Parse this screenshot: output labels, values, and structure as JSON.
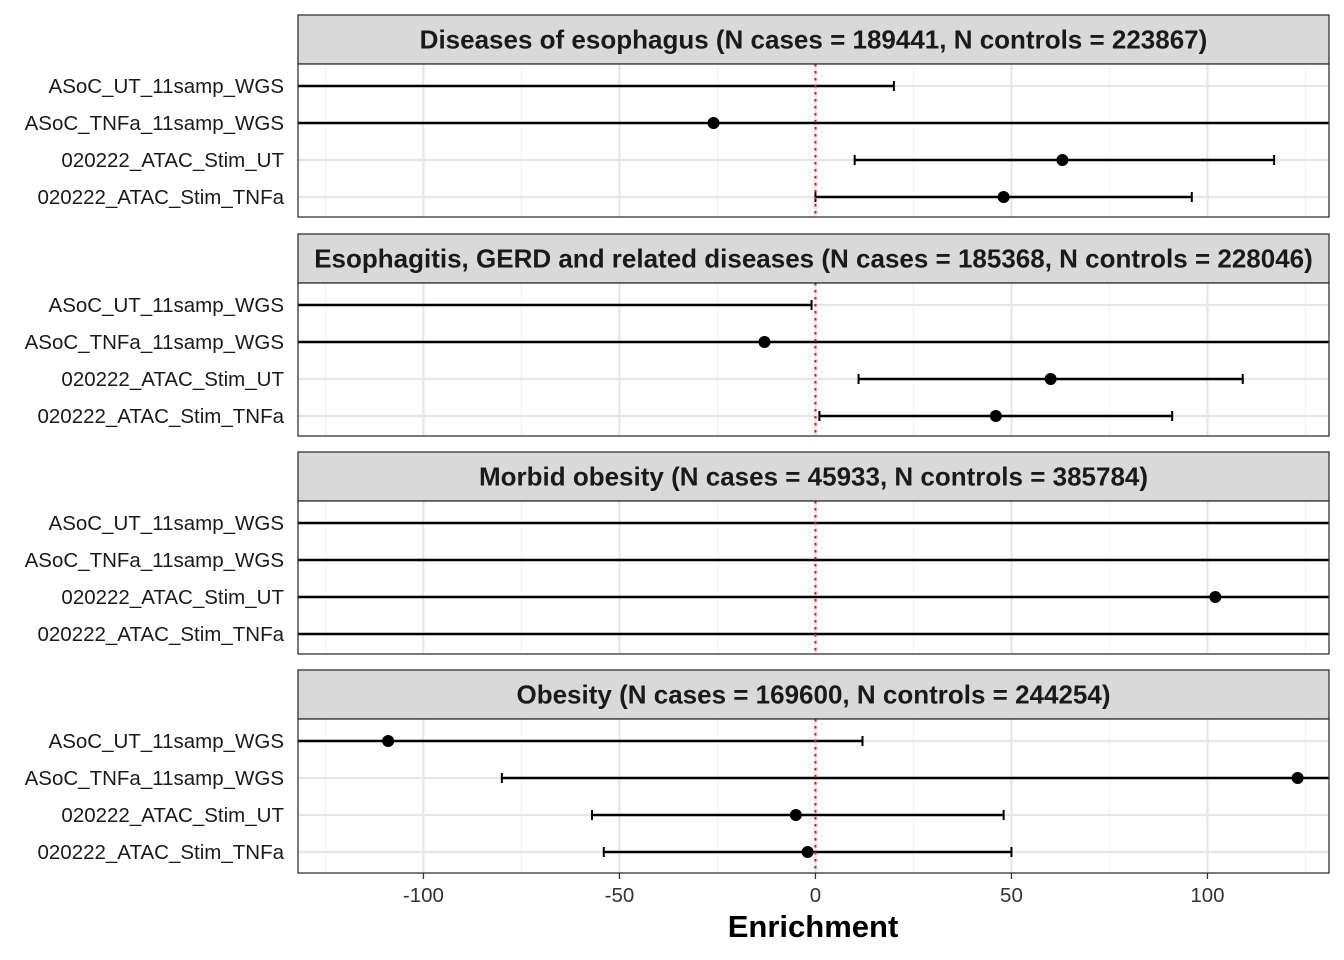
{
  "chart_data": {
    "type": "forest",
    "xlabel": "Enrichment",
    "ylabel": "",
    "xlim": [
      -132,
      131
    ],
    "x_ticks": [
      -100,
      -50,
      0,
      50,
      100
    ],
    "x_tick_labels": [
      "-100",
      "-50",
      "0",
      "50",
      "100"
    ],
    "reference_line": {
      "x": 0,
      "style": "dotted",
      "color": "#e41a1c"
    },
    "grid": true,
    "categories": [
      "ASoC_UT_11samp_WGS",
      "ASoC_TNFa_11samp_WGS",
      "020222_ATAC_Stim_UT",
      "020222_ATAC_Stim_TNFa"
    ],
    "panels": [
      {
        "title": "Diseases of esophagus (N cases = 189441, N controls = 223867)",
        "rows": [
          {
            "label": "ASoC_UT_11samp_WGS",
            "estimate": null,
            "lower": null,
            "upper": 20
          },
          {
            "label": "ASoC_TNFa_11samp_WGS",
            "estimate": -26,
            "lower": null,
            "upper": null
          },
          {
            "label": "020222_ATAC_Stim_UT",
            "estimate": 63,
            "lower": 10,
            "upper": 117
          },
          {
            "label": "020222_ATAC_Stim_TNFa",
            "estimate": 48,
            "lower": 0,
            "upper": 96
          }
        ]
      },
      {
        "title": "Esophagitis, GERD and related diseases (N cases = 185368, N controls = 228046)",
        "rows": [
          {
            "label": "ASoC_UT_11samp_WGS",
            "estimate": null,
            "lower": null,
            "upper": -1
          },
          {
            "label": "ASoC_TNFa_11samp_WGS",
            "estimate": -13,
            "lower": null,
            "upper": null
          },
          {
            "label": "020222_ATAC_Stim_UT",
            "estimate": 60,
            "lower": 11,
            "upper": 109
          },
          {
            "label": "020222_ATAC_Stim_TNFa",
            "estimate": 46,
            "lower": 1,
            "upper": 91
          }
        ]
      },
      {
        "title": "Morbid obesity (N cases = 45933, N controls = 385784)",
        "rows": [
          {
            "label": "ASoC_UT_11samp_WGS",
            "estimate": null,
            "lower": null,
            "upper": null
          },
          {
            "label": "ASoC_TNFa_11samp_WGS",
            "estimate": null,
            "lower": null,
            "upper": null
          },
          {
            "label": "020222_ATAC_Stim_UT",
            "estimate": 102,
            "lower": null,
            "upper": null
          },
          {
            "label": "020222_ATAC_Stim_TNFa",
            "estimate": null,
            "lower": null,
            "upper": null
          }
        ]
      },
      {
        "title": "Obesity (N cases = 169600, N controls = 244254)",
        "rows": [
          {
            "label": "ASoC_UT_11samp_WGS",
            "estimate": -109,
            "lower": null,
            "upper": 12
          },
          {
            "label": "ASoC_TNFa_11samp_WGS",
            "estimate": 123,
            "lower": -80,
            "upper": null
          },
          {
            "label": "020222_ATAC_Stim_UT",
            "estimate": -5,
            "lower": -57,
            "upper": 48
          },
          {
            "label": "020222_ATAC_Stim_TNFa",
            "estimate": -2,
            "lower": -54,
            "upper": 50
          }
        ]
      }
    ]
  }
}
